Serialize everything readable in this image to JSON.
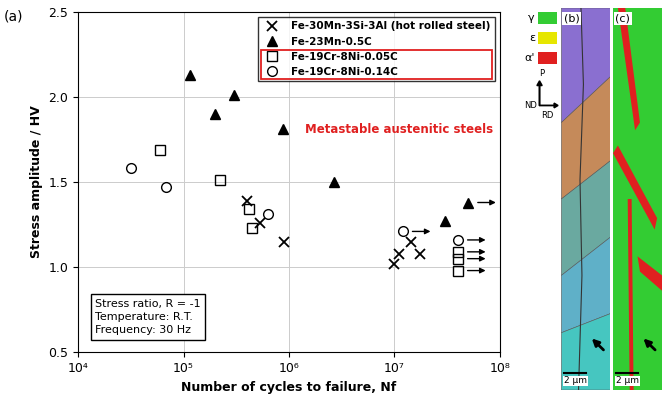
{
  "chart_data": {
    "type": "scatter",
    "panel_label": "(a)",
    "x_label": "Number of cycles to failure, Nf",
    "y_label": "Stress amplitude / HV",
    "log": "x",
    "grid": true,
    "legend": "upper right",
    "xlim": [
      10000,
      100000000
    ],
    "xticks": [
      {
        "value": 10000,
        "label": "10⁴"
      },
      {
        "value": 100000,
        "label": "10⁵"
      },
      {
        "value": 1000000,
        "label": "10⁶"
      },
      {
        "value": 10000000,
        "label": "10⁷"
      },
      {
        "value": 100000000,
        "label": "10⁸"
      }
    ],
    "ylim": [
      0.5,
      2.5
    ],
    "yticks": [
      0.5,
      {
        "value": 1,
        "label": "1.0"
      },
      1.5,
      {
        "value": 2,
        "label": "2.0"
      },
      2.5
    ],
    "series": [
      {
        "name": "Fe-30Mn-3Si-3Al (hot rolled steel)",
        "color": "#000000",
        "marker": "x",
        "x": [
          400000,
          530000,
          900000,
          10000000,
          11000000,
          14500000,
          17500000
        ],
        "values": [
          1.39,
          1.26,
          1.15,
          1.02,
          1.08,
          1.15,
          1.08
        ],
        "runout": [
          false,
          false,
          false,
          false,
          false,
          false,
          false
        ]
      },
      {
        "name": "Fe-23Mn-0.5C",
        "color": "#000000",
        "marker": "^",
        "x": [
          115000,
          200000,
          300000,
          880000,
          2700000,
          30000000,
          50000000
        ],
        "values": [
          2.13,
          1.9,
          2.01,
          1.81,
          1.5,
          1.27,
          1.38
        ],
        "runout": [
          false,
          false,
          false,
          false,
          false,
          false,
          true
        ]
      },
      {
        "name": "Fe-19Cr-8Ni-0.05C",
        "color": "#000000",
        "marker": "s",
        "x": [
          60000,
          220000,
          420000,
          450000,
          40000000,
          40000000,
          40000000
        ],
        "values": [
          1.69,
          1.51,
          1.34,
          1.23,
          1.09,
          1.05,
          0.98
        ],
        "runout": [
          false,
          false,
          false,
          false,
          true,
          true,
          true
        ]
      },
      {
        "name": "Fe-19Cr-8Ni-0.14C",
        "color": "#000000",
        "marker": "o",
        "x": [
          32000,
          68000,
          630000,
          12000000,
          40000000
        ],
        "values": [
          1.58,
          1.47,
          1.31,
          1.21,
          1.16
        ],
        "runout": [
          false,
          false,
          false,
          true,
          true
        ]
      }
    ],
    "annotations": [
      {
        "text": "Metastable austenitic steels",
        "color": "#e02020"
      },
      {
        "text": "Stress ratio, R = -1\nTemperature: R.T.\nFrequency: 30 Hz",
        "color": "#000000"
      }
    ]
  },
  "side_panels": {
    "labels": [
      "(b)",
      "(c)"
    ],
    "scale_bar": "2 μm",
    "phases": [
      {
        "name": "γ",
        "color": "#33cc33"
      },
      {
        "name": "ε",
        "color": "#e6e600"
      },
      {
        "name": "α'",
        "color": "#e02020"
      }
    ],
    "directions": [
      "P",
      "ND",
      "RD"
    ]
  }
}
